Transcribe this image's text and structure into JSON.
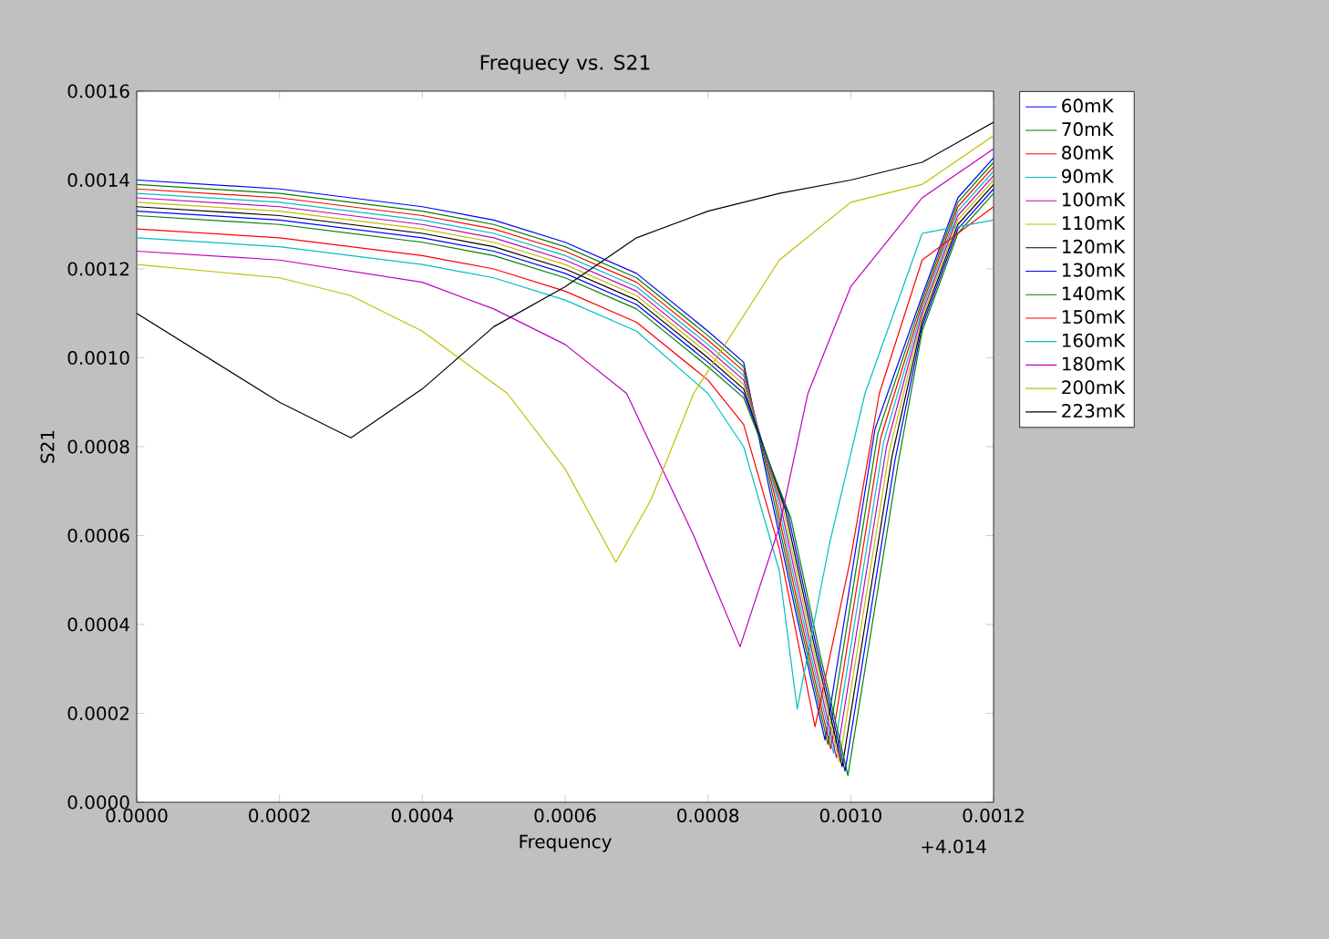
{
  "chart_data": {
    "type": "line",
    "title": "Frequecy vs. S21",
    "xlabel": "Frequency",
    "ylabel": "S21",
    "annotations": [
      "+4.014"
    ],
    "xlim": [
      0,
      0.0012
    ],
    "ylim": [
      0,
      0.0016
    ],
    "xticks": [
      {
        "value": 0,
        "label": "0.0000"
      },
      {
        "value": 0.0002,
        "label": "0.0002"
      },
      {
        "value": 0.0004,
        "label": "0.0004"
      },
      {
        "value": 0.0006,
        "label": "0.0006"
      },
      {
        "value": 0.0008,
        "label": "0.0008"
      },
      {
        "value": 0.001,
        "label": "0.0010"
      },
      {
        "value": 0.0012,
        "label": "0.0012"
      }
    ],
    "yticks": [
      {
        "value": 0,
        "label": "0.0000"
      },
      {
        "value": 0.0002,
        "label": "0.0002"
      },
      {
        "value": 0.0004,
        "label": "0.0004"
      },
      {
        "value": 0.0006,
        "label": "0.0006"
      },
      {
        "value": 0.0008,
        "label": "0.0008"
      },
      {
        "value": 0.001,
        "label": "0.0010"
      },
      {
        "value": 0.0012,
        "label": "0.0012"
      },
      {
        "value": 0.0014,
        "label": "0.0014"
      },
      {
        "value": 0.0016,
        "label": "0.0016"
      }
    ],
    "legend": "right",
    "line_style": "solid",
    "series": [
      {
        "name": "60mK",
        "color": "#0000ff",
        "x": [
          0,
          0.0002,
          0.0004,
          0.0005,
          0.0006,
          0.0007,
          0.0008,
          0.00085,
          0.000884,
          0.000924,
          0.000964,
          0.000984,
          0.001034,
          0.0011,
          0.00115,
          0.0012
        ],
        "values": [
          0.0014,
          0.00138,
          0.00134,
          0.00131,
          0.00126,
          0.00119,
          0.00106,
          0.00099,
          0.00072,
          0.00042,
          0.00014,
          0.00034,
          0.00084,
          0.00114,
          0.00136,
          0.00145
        ]
      },
      {
        "name": "70mK",
        "color": "#008000",
        "x": [
          0,
          0.0002,
          0.0004,
          0.0005,
          0.0006,
          0.0007,
          0.0008,
          0.00085,
          0.000888,
          0.000928,
          0.000968,
          0.000988,
          0.001038,
          0.0011,
          0.00115,
          0.0012
        ],
        "values": [
          0.00139,
          0.00137,
          0.00133,
          0.0013,
          0.00125,
          0.00118,
          0.00105,
          0.00098,
          0.00071,
          0.00041,
          0.00013,
          0.00033,
          0.00083,
          0.00113,
          0.00135,
          0.00144
        ]
      },
      {
        "name": "80mK",
        "color": "#ff0000",
        "x": [
          0,
          0.0002,
          0.0004,
          0.0005,
          0.0006,
          0.0007,
          0.0008,
          0.00085,
          0.000892,
          0.000932,
          0.000972,
          0.000992,
          0.001042,
          0.0011,
          0.00115,
          0.0012
        ],
        "values": [
          0.00138,
          0.00136,
          0.00132,
          0.00129,
          0.00124,
          0.00117,
          0.00104,
          0.00097,
          0.0007,
          0.0004,
          0.00012,
          0.00032,
          0.00082,
          0.00112,
          0.00134,
          0.00143
        ]
      },
      {
        "name": "90mK",
        "color": "#00bfbf",
        "x": [
          0,
          0.0002,
          0.0004,
          0.0005,
          0.0006,
          0.0007,
          0.0008,
          0.00085,
          0.000896,
          0.000936,
          0.000976,
          0.000996,
          0.001046,
          0.0011,
          0.00115,
          0.0012
        ],
        "values": [
          0.00137,
          0.00135,
          0.00131,
          0.00128,
          0.00123,
          0.00116,
          0.00103,
          0.00096,
          0.00069,
          0.00039,
          0.00011,
          0.00031,
          0.00081,
          0.00111,
          0.00133,
          0.00142
        ]
      },
      {
        "name": "100mK",
        "color": "#bf00bf",
        "x": [
          0,
          0.0002,
          0.0004,
          0.0005,
          0.0006,
          0.0007,
          0.0008,
          0.00085,
          0.0009,
          0.00094,
          0.00098,
          0.001,
          0.00105,
          0.0011,
          0.00115,
          0.0012
        ],
        "values": [
          0.00136,
          0.00134,
          0.0013,
          0.00127,
          0.00122,
          0.00115,
          0.00102,
          0.00095,
          0.00068,
          0.00038,
          0.0001,
          0.0003,
          0.0008,
          0.0011,
          0.00132,
          0.00141
        ]
      },
      {
        "name": "110mK",
        "color": "#bfbf00",
        "x": [
          0,
          0.0002,
          0.0004,
          0.0005,
          0.0006,
          0.0007,
          0.0008,
          0.00085,
          0.000904,
          0.000944,
          0.000984,
          0.001004,
          0.001054,
          0.0011,
          0.00115,
          0.0012
        ],
        "values": [
          0.00135,
          0.00133,
          0.00129,
          0.00126,
          0.00121,
          0.00114,
          0.00101,
          0.00094,
          0.00067,
          0.00037,
          9e-05,
          0.00029,
          0.00079,
          0.00109,
          0.00131,
          0.0014
        ]
      },
      {
        "name": "120mK",
        "color": "#000000",
        "x": [
          0,
          0.0002,
          0.0004,
          0.0005,
          0.0006,
          0.0007,
          0.0008,
          0.00085,
          0.000908,
          0.000948,
          0.000988,
          0.001008,
          0.001058,
          0.0011,
          0.00115,
          0.0012
        ],
        "values": [
          0.00134,
          0.00132,
          0.00128,
          0.00125,
          0.0012,
          0.00113,
          0.001,
          0.00093,
          0.00066,
          0.00036,
          8e-05,
          0.00028,
          0.00078,
          0.00108,
          0.0013,
          0.00139
        ]
      },
      {
        "name": "130mK",
        "color": "#0000ff",
        "x": [
          0,
          0.0002,
          0.0004,
          0.0005,
          0.0006,
          0.0007,
          0.0008,
          0.00085,
          0.000912,
          0.000952,
          0.000992,
          0.001012,
          0.001062,
          0.0011,
          0.00115,
          0.0012
        ],
        "values": [
          0.00133,
          0.00131,
          0.00127,
          0.00124,
          0.00119,
          0.00112,
          0.00099,
          0.00092,
          0.00065,
          0.00035,
          7e-05,
          0.00027,
          0.00077,
          0.00107,
          0.00129,
          0.00138
        ]
      },
      {
        "name": "140mK",
        "color": "#008000",
        "x": [
          0,
          0.0002,
          0.0004,
          0.0005,
          0.0006,
          0.0007,
          0.0008,
          0.00085,
          0.000916,
          0.000956,
          0.000996,
          0.001016,
          0.001066,
          0.0011,
          0.00115,
          0.0012
        ],
        "values": [
          0.00132,
          0.0013,
          0.00126,
          0.00123,
          0.00118,
          0.00111,
          0.00098,
          0.00091,
          0.00064,
          0.00034,
          6e-05,
          0.00026,
          0.00076,
          0.00106,
          0.00128,
          0.00137
        ]
      },
      {
        "name": "150mK",
        "color": "#ff0000",
        "x": [
          0,
          0.0002,
          0.0004,
          0.0005,
          0.0006,
          0.0007,
          0.0008,
          0.00085,
          0.0009,
          0.00095,
          0.001,
          0.00104,
          0.0011,
          0.0012
        ],
        "values": [
          0.00129,
          0.00127,
          0.00123,
          0.0012,
          0.00115,
          0.00108,
          0.00095,
          0.00085,
          0.00057,
          0.00017,
          0.00055,
          0.00092,
          0.00122,
          0.00134
        ]
      },
      {
        "name": "160mK",
        "color": "#00bfbf",
        "x": [
          0,
          0.0002,
          0.0004,
          0.0005,
          0.0006,
          0.0007,
          0.0008,
          0.00085,
          0.0009,
          0.000925,
          0.00097,
          0.00102,
          0.0011,
          0.0012
        ],
        "values": [
          0.00127,
          0.00125,
          0.00121,
          0.00118,
          0.00113,
          0.00106,
          0.00092,
          0.0008,
          0.00052,
          0.00021,
          0.00058,
          0.00092,
          0.00128,
          0.00131
        ]
      },
      {
        "name": "180mK",
        "color": "#bf00bf",
        "x": [
          0,
          0.0002,
          0.0004,
          0.0005,
          0.0006,
          0.000686,
          0.00078,
          0.000845,
          0.0009,
          0.00094,
          0.001,
          0.0011,
          0.0012
        ],
        "values": [
          0.00124,
          0.00122,
          0.00117,
          0.00111,
          0.00103,
          0.00092,
          0.0006,
          0.00035,
          0.00062,
          0.00092,
          0.00116,
          0.00136,
          0.00147
        ]
      },
      {
        "name": "200mK",
        "color": "#bfbf00",
        "x": [
          0,
          0.0002,
          0.0003,
          0.0004,
          0.000519,
          0.0006,
          0.000671,
          0.00072,
          0.00078,
          0.0009,
          0.001,
          0.0011,
          0.0012
        ],
        "values": [
          0.00121,
          0.00118,
          0.00114,
          0.00106,
          0.00092,
          0.00075,
          0.00054,
          0.00068,
          0.00092,
          0.00122,
          0.00135,
          0.00139,
          0.0015
        ]
      },
      {
        "name": "223mK",
        "color": "#000000",
        "x": [
          0,
          0.0001,
          0.0002,
          0.0003,
          0.0004,
          0.0005,
          0.0006,
          0.0007,
          0.0008,
          0.0009,
          0.001,
          0.0011,
          0.0012
        ],
        "values": [
          0.0011,
          0.001,
          0.0009,
          0.00082,
          0.00093,
          0.00107,
          0.00116,
          0.00127,
          0.00133,
          0.00137,
          0.0014,
          0.00144,
          0.00153
        ]
      }
    ]
  }
}
